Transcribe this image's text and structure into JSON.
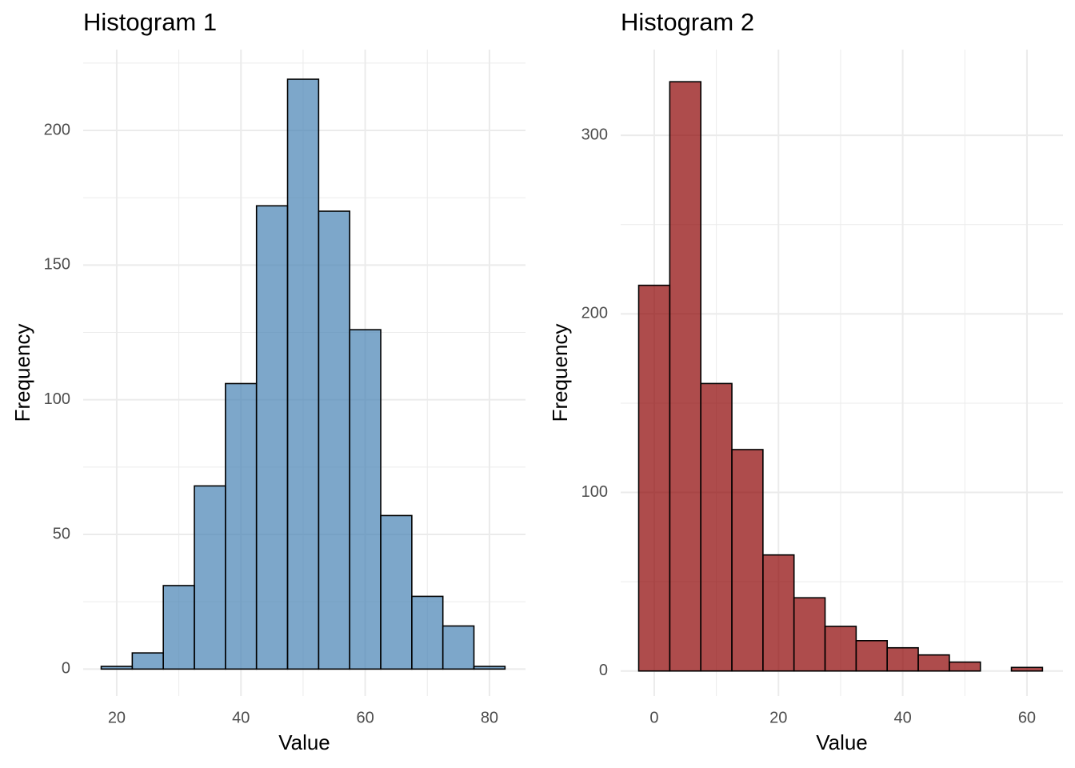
{
  "chart_data": [
    {
      "type": "histogram",
      "title": "Histogram 1",
      "x_label": "Value",
      "y_label": "Frequency",
      "bins": [
        17.5,
        22.5,
        27.5,
        32.5,
        37.5,
        42.5,
        47.5,
        52.5,
        57.5,
        62.5,
        67.5,
        72.5,
        77.5,
        82.5
      ],
      "values": [
        1,
        6,
        31,
        68,
        106,
        172,
        219,
        170,
        126,
        57,
        27,
        16,
        1
      ],
      "color": "#4682b4",
      "opacity": 0.7,
      "xlim": [
        14.6,
        85.8
      ],
      "ylim": [
        -10,
        230
      ],
      "xticks": [
        20,
        40,
        60,
        80
      ],
      "yticks": [
        0,
        50,
        100,
        150,
        200
      ],
      "xminor": [
        30,
        50,
        70
      ],
      "yminor": [
        25,
        75,
        125,
        175,
        225
      ],
      "grid": true
    },
    {
      "type": "histogram",
      "title": "Histogram 2",
      "x_label": "Value",
      "y_label": "Frequency",
      "bins": [
        -2.5,
        2.5,
        7.5,
        12.5,
        17.5,
        22.5,
        27.5,
        32.5,
        37.5,
        42.5,
        47.5,
        52.5,
        57.5,
        62.5
      ],
      "values": [
        216,
        330,
        161,
        124,
        65,
        41,
        25,
        17,
        13,
        9,
        5,
        0,
        2
      ],
      "color": "#8b0000",
      "opacity": 0.7,
      "xlim": [
        -5.4,
        65.8
      ],
      "ylim": [
        -14,
        348
      ],
      "xticks": [
        0,
        20,
        40,
        60
      ],
      "yticks": [
        0,
        100,
        200,
        300
      ],
      "xminor": [
        10,
        30,
        50
      ],
      "yminor": [
        50,
        150,
        250
      ],
      "grid": true
    }
  ]
}
